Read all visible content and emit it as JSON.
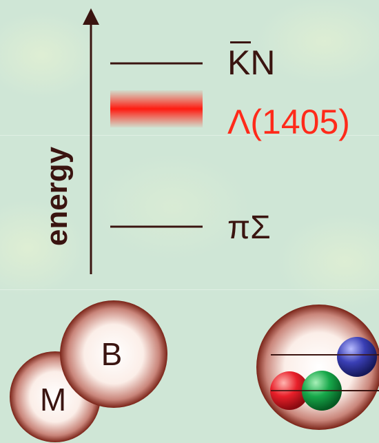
{
  "axis": {
    "label": "energy"
  },
  "levels": [
    {
      "label": "KN",
      "color": "#3a1410"
    },
    {
      "label": "Λ(1405)",
      "color": "#ff2a1a"
    },
    {
      "label": "πΣ",
      "color": "#3a1410"
    }
  ],
  "molecule": {
    "meson_label": "M",
    "baryon_label": "B"
  },
  "colors": {
    "ink": "#3a1410",
    "accent": "#ff2a1a",
    "quark_red": "#e8202a",
    "quark_green": "#17a84a",
    "quark_blue": "#2b2f9a"
  }
}
